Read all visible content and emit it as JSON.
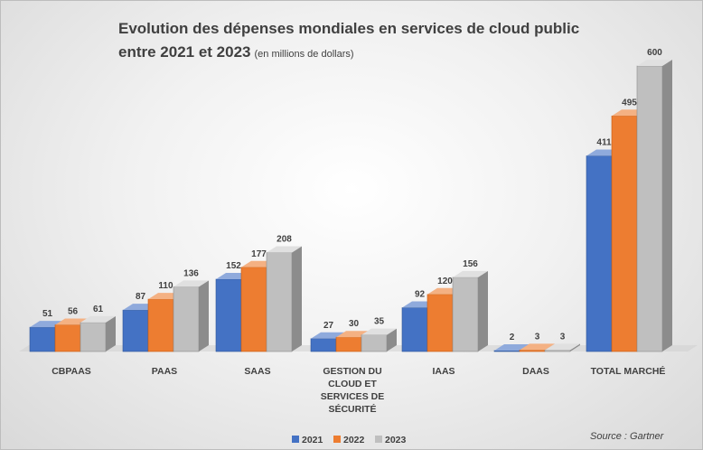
{
  "chart_data": {
    "type": "bar",
    "title_line1": "Evolution des dépenses mondiales en services de cloud public",
    "title_line2": "entre 2021 et 2023",
    "subtitle": "(en millions de dollars)",
    "categories": [
      [
        "CBPAAS"
      ],
      [
        "PAAS"
      ],
      [
        "SAAS"
      ],
      [
        "GESTION DU",
        "CLOUD ET",
        "SERVICES DE",
        "SÉCURITÉ"
      ],
      [
        "IAAS"
      ],
      [
        "DAAS"
      ],
      [
        "TOTAL MARCHÉ"
      ]
    ],
    "series": [
      {
        "name": "2021",
        "values": [
          51,
          87,
          152,
          27,
          92,
          2,
          411
        ]
      },
      {
        "name": "2022",
        "values": [
          56,
          110,
          177,
          30,
          120,
          3,
          495
        ]
      },
      {
        "name": "2023",
        "values": [
          61,
          136,
          208,
          35,
          156,
          3,
          600
        ]
      }
    ],
    "ylim": [
      0,
      600
    ],
    "grid": false,
    "legend_position": "bottom",
    "colors": {
      "2021": {
        "front": "#4472c4",
        "side": "#2f5597",
        "top": "#8faadc"
      },
      "2022": {
        "front": "#ed7d31",
        "side": "#c55a11",
        "top": "#f4b183"
      },
      "2023": {
        "front": "#bfbfbf",
        "side": "#8c8c8c",
        "top": "#e0e0e0"
      }
    },
    "source": "Source : Gartner"
  }
}
